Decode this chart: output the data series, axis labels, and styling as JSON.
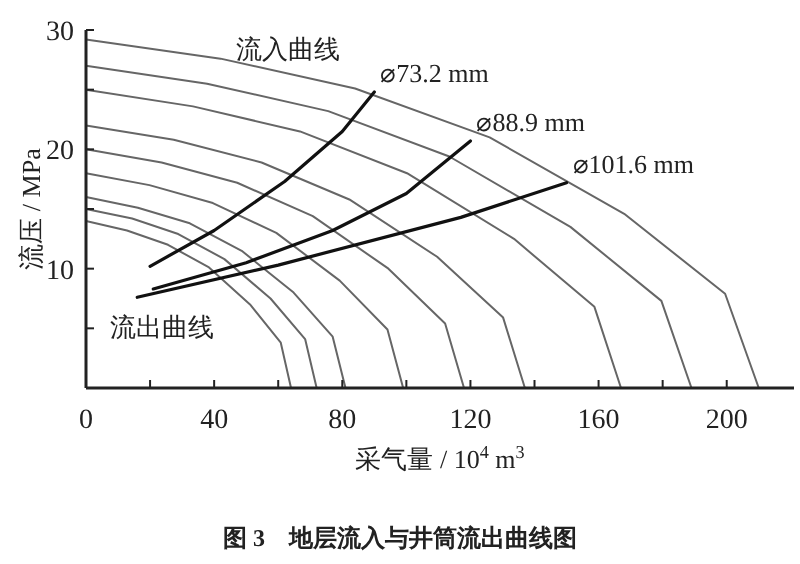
{
  "chart_data": {
    "type": "line",
    "title": "图 3　地层流入与井筒流出曲线图",
    "xlabel": "采气量 / 10$^{4}$ m$^{3}$",
    "ylabel": "流压 / MPa",
    "xlim": [
      0,
      221
    ],
    "ylim": [
      0,
      30
    ],
    "xticks": [
      0,
      {
        "value": 20,
        "label": null
      },
      40,
      {
        "value": 60,
        "label": null
      },
      80,
      {
        "value": 100,
        "label": null
      },
      120,
      {
        "value": 140,
        "label": null
      },
      160,
      {
        "value": 180,
        "label": null
      },
      200
    ],
    "yticks": [
      {
        "value": 5,
        "label": null
      },
      10,
      {
        "value": 15,
        "label": null
      },
      20,
      {
        "value": 25,
        "label": null
      },
      30
    ],
    "grid": false,
    "line_style": "solid",
    "annotations": [
      "流入曲线",
      "流出曲线"
    ],
    "series": [
      {
        "color": "#666666",
        "x": [
          0,
          42,
          84,
          126,
          168,
          199.5,
          210
        ],
        "values": [
          29.2,
          27.6,
          25.1,
          21.0,
          14.6,
          7.9,
          0
        ]
      },
      {
        "color": "#666666",
        "x": [
          0,
          37.8,
          75.6,
          113.4,
          151.2,
          179.6,
          189
        ],
        "values": [
          27,
          25.5,
          23.2,
          19.4,
          13.5,
          7.3,
          0
        ]
      },
      {
        "color": "#666666",
        "x": [
          0,
          33.4,
          66.8,
          100.2,
          133.6,
          158.7,
          167
        ],
        "values": [
          25,
          23.6,
          21.5,
          18,
          12.5,
          6.8,
          0
        ]
      },
      {
        "color": "#666666",
        "x": [
          0,
          27.4,
          54.8,
          82.2,
          109.6,
          130.2,
          137
        ],
        "values": [
          22,
          20.8,
          18.9,
          15.8,
          11,
          5.9,
          0
        ]
      },
      {
        "color": "#666666",
        "x": [
          0,
          23.6,
          47.2,
          70.8,
          94.4,
          112.1,
          118
        ],
        "values": [
          20,
          18.9,
          17.2,
          14.4,
          10,
          5.4,
          0
        ]
      },
      {
        "color": "#666666",
        "x": [
          0,
          19.8,
          39.6,
          59.4,
          79.2,
          94.1,
          99
        ],
        "values": [
          18,
          17,
          15.5,
          13,
          9,
          4.9,
          0
        ]
      },
      {
        "color": "#666666",
        "x": [
          0,
          16.2,
          32.4,
          48.6,
          64.8,
          77,
          81
        ],
        "values": [
          16,
          15.1,
          13.8,
          11.5,
          8,
          4.3,
          0
        ]
      },
      {
        "color": "#666666",
        "x": [
          0,
          14.4,
          28.8,
          43.2,
          57.6,
          68.4,
          72
        ],
        "values": [
          15,
          14.2,
          12.9,
          10.8,
          7.5,
          4.1,
          0
        ]
      },
      {
        "color": "#666666",
        "x": [
          0,
          12.8,
          25.6,
          38.4,
          51.2,
          60.8,
          64
        ],
        "values": [
          14,
          13.2,
          12,
          10.1,
          7,
          3.8,
          0
        ]
      },
      {
        "name": "⌀73.2 mm",
        "color": "#111111",
        "x": [
          20,
          40,
          62,
          80,
          90
        ],
        "values": [
          10.2,
          13.2,
          17.3,
          21.5,
          24.8
        ]
      },
      {
        "name": "⌀88.9 mm",
        "color": "#111111",
        "x": [
          21,
          50,
          77,
          100,
          120
        ],
        "values": [
          8.3,
          10.5,
          13.2,
          16.3,
          20.7
        ]
      },
      {
        "name": "⌀101.6 mm",
        "color": "#111111",
        "x": [
          16,
          60,
          117,
          150
        ],
        "values": [
          7.6,
          10.3,
          14.3,
          17.2
        ]
      }
    ]
  }
}
